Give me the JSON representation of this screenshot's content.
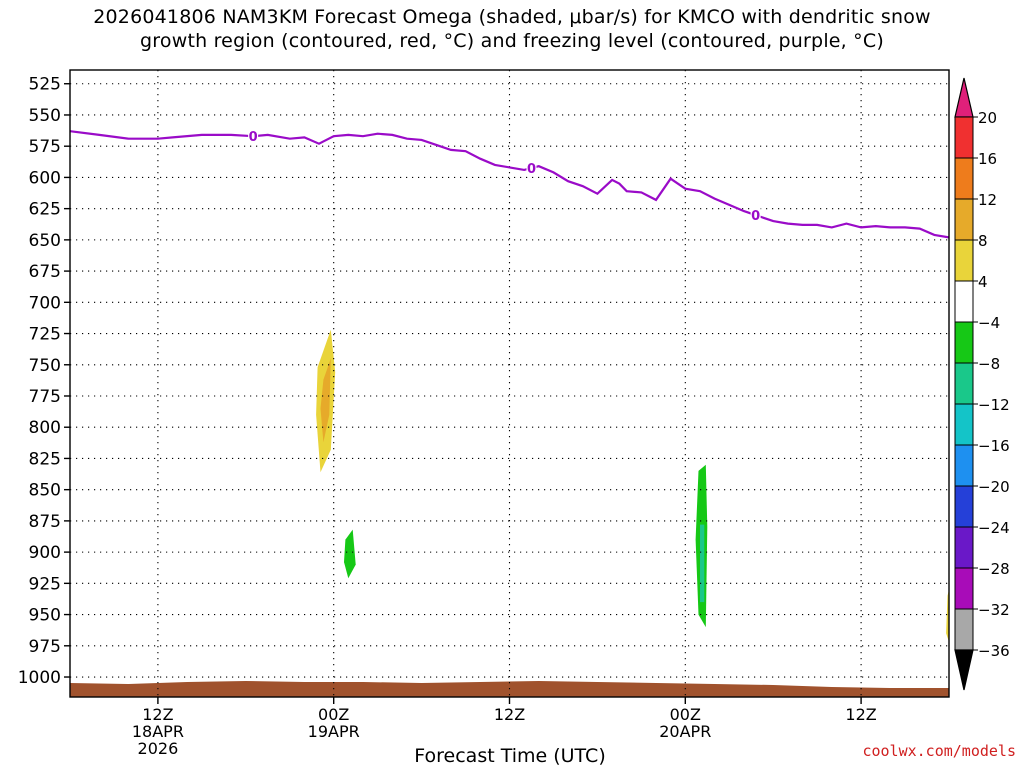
{
  "chart_data": {
    "type": "heatmap",
    "title_line1": "2026041806 NAM3KM Forecast Omega (shaded, μbar/s) for KMCO with dendritic snow",
    "title_line2": "growth region (contoured, red, °C) and freezing level (contoured, purple, °C)",
    "xlabel": "Forecast Time (UTC)",
    "ylabel": "Pressure (mb)",
    "x_range_hours": [
      0,
      60
    ],
    "x_ticks": [
      {
        "hour": 6,
        "label": "12Z",
        "sub": [
          "18APR",
          "2026"
        ]
      },
      {
        "hour": 18,
        "label": "00Z",
        "sub": [
          "19APR"
        ]
      },
      {
        "hour": 30,
        "label": "12Z",
        "sub": []
      },
      {
        "hour": 42,
        "label": "00Z",
        "sub": [
          "20APR"
        ]
      },
      {
        "hour": 54,
        "label": "12Z",
        "sub": []
      }
    ],
    "y_ticks": [
      525,
      550,
      575,
      600,
      625,
      650,
      675,
      700,
      725,
      750,
      775,
      800,
      825,
      850,
      875,
      900,
      925,
      950,
      975,
      1000
    ],
    "freezing_level": {
      "label": "0",
      "hours": [
        0,
        2,
        4,
        6,
        7,
        9,
        11,
        12.5,
        13.5,
        15,
        16,
        17,
        18,
        19,
        20,
        21,
        22,
        23,
        24,
        25,
        26,
        27,
        28,
        29,
        30,
        31,
        32,
        33,
        34,
        35,
        36,
        37,
        37.5,
        38,
        39,
        40,
        41,
        42,
        43,
        44,
        45,
        46,
        47,
        48,
        49,
        50,
        51,
        52,
        53,
        54,
        55,
        56,
        57,
        58,
        59,
        60
      ],
      "pressure_mb": [
        563,
        566,
        569,
        569,
        568,
        566,
        566,
        567,
        566,
        569,
        568,
        573,
        567,
        566,
        567,
        565,
        566,
        569,
        570,
        574,
        578,
        579,
        585,
        590,
        592,
        594,
        591,
        596,
        603,
        607,
        613,
        602,
        605,
        611,
        612,
        618,
        601,
        609,
        611,
        617,
        622,
        627,
        631,
        635,
        637,
        638,
        638,
        640,
        637,
        640,
        639,
        640,
        640,
        641,
        646,
        648
      ]
    },
    "omega_regions": [
      {
        "id": "pos-a-outer",
        "value": 4,
        "points": [
          [
            16.1,
            737
          ],
          [
            17.1,
            711
          ],
          [
            18.0,
            691
          ],
          [
            18.6,
            729
          ],
          [
            18.2,
            772
          ],
          [
            17.8,
            822
          ],
          [
            17.3,
            864
          ],
          [
            16.6,
            844
          ],
          [
            16.2,
            798
          ],
          [
            15.9,
            757
          ]
        ]
      },
      {
        "id": "pos-a-mid",
        "value": 8,
        "points": [
          [
            16.9,
            752
          ],
          [
            17.8,
            722
          ],
          [
            18.1,
            756
          ],
          [
            17.8,
            818
          ],
          [
            17.1,
            836
          ],
          [
            16.8,
            790
          ]
        ]
      },
      {
        "id": "pos-a-core",
        "value": 12,
        "points": [
          [
            17.3,
            762
          ],
          [
            17.8,
            745
          ],
          [
            17.7,
            790
          ],
          [
            17.3,
            812
          ],
          [
            17.1,
            785
          ]
        ]
      },
      {
        "id": "neg-b-outer",
        "value": -4,
        "points": [
          [
            18.7,
            833
          ],
          [
            19.0,
            803
          ],
          [
            19.4,
            848
          ],
          [
            19.9,
            874
          ],
          [
            20.3,
            918
          ],
          [
            19.6,
            951
          ],
          [
            18.8,
            951
          ],
          [
            18.4,
            920
          ],
          [
            18.3,
            874
          ]
        ]
      },
      {
        "id": "neg-b-core",
        "value": -8,
        "points": [
          [
            18.8,
            890
          ],
          [
            19.3,
            882
          ],
          [
            19.5,
            910
          ],
          [
            19.0,
            921
          ],
          [
            18.7,
            908
          ]
        ]
      },
      {
        "id": "neg-c",
        "value": -4,
        "points": [
          [
            15.9,
            917
          ],
          [
            16.3,
            928
          ],
          [
            16.6,
            944
          ],
          [
            16.2,
            952
          ],
          [
            15.9,
            938
          ]
        ]
      },
      {
        "id": "pos-d",
        "value": 4,
        "points": [
          [
            35.0,
            835
          ],
          [
            35.1,
            852
          ],
          [
            35.0,
            867
          ],
          [
            34.8,
            851
          ]
        ]
      },
      {
        "id": "neg-e",
        "value": -4,
        "points": [
          [
            39.2,
            728
          ],
          [
            39.4,
            752
          ],
          [
            39.2,
            781
          ],
          [
            38.9,
            756
          ],
          [
            38.9,
            735
          ]
        ]
      },
      {
        "id": "neg-top1",
        "value": -4,
        "points": [
          [
            31.2,
            522
          ],
          [
            31.5,
            522
          ],
          [
            31.5,
            545
          ],
          [
            31.3,
            559
          ],
          [
            31.1,
            545
          ]
        ]
      },
      {
        "id": "neg-g-outer",
        "value": -4,
        "points": [
          [
            42.7,
            806
          ],
          [
            43.2,
            796
          ],
          [
            43.6,
            840
          ],
          [
            43.8,
            890
          ],
          [
            44.6,
            885
          ],
          [
            44.6,
            898
          ],
          [
            43.9,
            902
          ],
          [
            43.9,
            955
          ],
          [
            43.4,
            991
          ],
          [
            42.9,
            984
          ],
          [
            42.4,
            953
          ],
          [
            42.3,
            925
          ],
          [
            40.9,
            923
          ],
          [
            40.9,
            903
          ],
          [
            41.2,
            898
          ],
          [
            42.3,
            904
          ],
          [
            42.5,
            860
          ]
        ]
      },
      {
        "id": "neg-g-core",
        "value": -8,
        "points": [
          [
            42.9,
            835
          ],
          [
            43.4,
            830
          ],
          [
            43.5,
            880
          ],
          [
            43.4,
            960
          ],
          [
            42.9,
            950
          ],
          [
            42.7,
            890
          ]
        ]
      },
      {
        "id": "neg-g-inner",
        "value": -12,
        "points": [
          [
            43.0,
            878
          ],
          [
            43.3,
            878
          ],
          [
            43.3,
            940
          ],
          [
            43.0,
            940
          ]
        ]
      },
      {
        "id": "pos-h",
        "value": 4,
        "points": [
          [
            43.0,
            567
          ],
          [
            43.3,
            590
          ],
          [
            43.2,
            640
          ],
          [
            43.1,
            662
          ],
          [
            42.9,
            625
          ],
          [
            42.9,
            592
          ]
        ]
      },
      {
        "id": "pos-i",
        "value": 4,
        "points": [
          [
            45.5,
            634
          ],
          [
            46.2,
            631
          ],
          [
            46.4,
            660
          ],
          [
            46.2,
            699
          ],
          [
            45.9,
            690
          ],
          [
            45.7,
            660
          ]
        ]
      },
      {
        "id": "neg-j",
        "value": -4,
        "points": [
          [
            48.0,
            578
          ],
          [
            48.9,
            545
          ],
          [
            49.2,
            580
          ],
          [
            48.7,
            620
          ],
          [
            47.9,
            637
          ],
          [
            47.8,
            605
          ]
        ]
      },
      {
        "id": "neg-k",
        "value": -4,
        "points": [
          [
            50.5,
            522
          ],
          [
            52.2,
            522
          ],
          [
            52.1,
            575
          ],
          [
            51.8,
            618
          ],
          [
            51.4,
            625
          ],
          [
            50.8,
            610
          ],
          [
            50.5,
            580
          ]
        ]
      },
      {
        "id": "neg-l",
        "value": -4,
        "points": [
          [
            48.9,
            801
          ],
          [
            49.2,
            801
          ],
          [
            49.1,
            815
          ],
          [
            48.9,
            812
          ]
        ]
      },
      {
        "id": "neg-m",
        "value": -4,
        "points": [
          [
            57.2,
            522
          ],
          [
            57.8,
            522
          ],
          [
            57.6,
            555
          ],
          [
            57.7,
            620
          ],
          [
            57.9,
            680
          ],
          [
            57.6,
            734
          ],
          [
            57.3,
            695
          ],
          [
            57.1,
            640
          ],
          [
            57.2,
            580
          ]
        ]
      },
      {
        "id": "pos-n",
        "value": 4,
        "points": [
          [
            51.7,
            898
          ],
          [
            52.6,
            879
          ],
          [
            53.3,
            902
          ],
          [
            53.6,
            950
          ],
          [
            53.3,
            973
          ],
          [
            52.1,
            973
          ],
          [
            51.9,
            940
          ]
        ]
      },
      {
        "id": "pos-o",
        "value": 4,
        "points": [
          [
            55.7,
            899
          ],
          [
            56.9,
            899
          ],
          [
            56.8,
            929
          ],
          [
            56.7,
            947
          ],
          [
            55.9,
            947
          ],
          [
            55.7,
            925
          ]
        ]
      },
      {
        "id": "neg-p",
        "value": -4,
        "points": [
          [
            58.5,
            905
          ],
          [
            58.8,
            902
          ],
          [
            58.9,
            921
          ],
          [
            58.6,
            939
          ],
          [
            58.4,
            924
          ]
        ]
      },
      {
        "id": "pos-q-outer",
        "value": 4,
        "points": [
          [
            59.7,
            907
          ],
          [
            60.0,
            899
          ],
          [
            60.0,
            990
          ],
          [
            59.6,
            980
          ],
          [
            59.4,
            950
          ]
        ]
      },
      {
        "id": "pos-q-core",
        "value": 8,
        "points": [
          [
            59.9,
            935
          ],
          [
            60.0,
            930
          ],
          [
            60.0,
            972
          ],
          [
            59.8,
            965
          ]
        ]
      },
      {
        "id": "pos-r",
        "value": 4,
        "points": [
          [
            59.9,
            750
          ],
          [
            60.0,
            742
          ],
          [
            60.0,
            771
          ],
          [
            59.9,
            765
          ]
        ]
      }
    ],
    "colorbar": {
      "labels": [
        "20",
        "16",
        "12",
        "8",
        "4",
        "−4",
        "−8",
        "−12",
        "−16",
        "−20",
        "−24",
        "−28",
        "−32",
        "−36"
      ],
      "bands": [
        {
          "lo": 16,
          "hi": 20,
          "color": "#f03030"
        },
        {
          "lo": 12,
          "hi": 16,
          "color": "#ee7c1c"
        },
        {
          "lo": 8,
          "hi": 12,
          "color": "#e6aa2a"
        },
        {
          "lo": 4,
          "hi": 8,
          "color": "#e9d43a"
        },
        {
          "lo": -4,
          "hi": 4,
          "color": "#ffffff"
        },
        {
          "lo": -8,
          "hi": -4,
          "color": "#16c816"
        },
        {
          "lo": -12,
          "hi": -8,
          "color": "#1ac88a"
        },
        {
          "lo": -16,
          "hi": -12,
          "color": "#14c4c8"
        },
        {
          "lo": -20,
          "hi": -16,
          "color": "#1e90f0"
        },
        {
          "lo": -24,
          "hi": -20,
          "color": "#2540d8"
        },
        {
          "lo": -28,
          "hi": -24,
          "color": "#6a18c8"
        },
        {
          "lo": -32,
          "hi": -28,
          "color": "#a80cb8"
        },
        {
          "lo": -36,
          "hi": -32,
          "color": "#a8a8a8"
        }
      ],
      "top_arrow_color": "#e0207a",
      "bottom_arrow_color": "#000000"
    },
    "colors": {
      "freezing_line": "#9a0bc8",
      "terrain": "#a0522d",
      "grid": "#000000"
    }
  },
  "credit": "coolwx.com/models"
}
